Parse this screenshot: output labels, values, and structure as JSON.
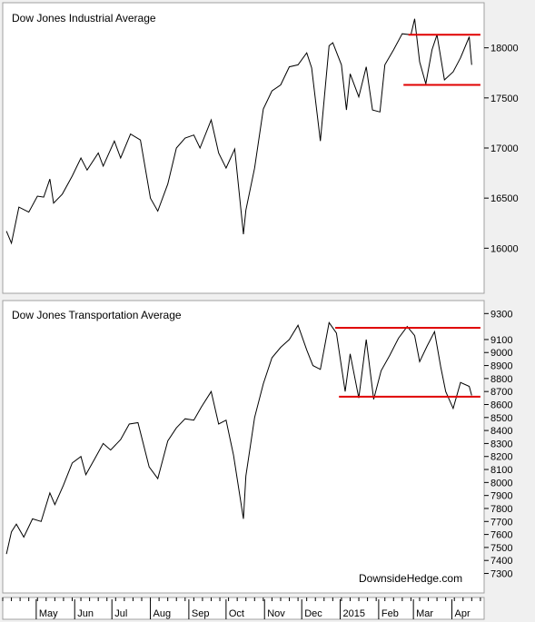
{
  "chart_data": [
    {
      "type": "line",
      "title": "Dow Jones Industrial Average",
      "ylim": [
        15550,
        18450
      ],
      "y_ticks": [
        16000,
        16500,
        17000,
        17500,
        18000
      ],
      "series": [
        {
          "color": "#000000",
          "points": [
            [
              "2014-04-07",
              16170
            ],
            [
              "2014-04-11",
              16050
            ],
            [
              "2014-04-17",
              16410
            ],
            [
              "2014-04-25",
              16360
            ],
            [
              "2014-05-02",
              16520
            ],
            [
              "2014-05-07",
              16510
            ],
            [
              "2014-05-12",
              16690
            ],
            [
              "2014-05-15",
              16450
            ],
            [
              "2014-05-22",
              16540
            ],
            [
              "2014-05-30",
              16720
            ],
            [
              "2014-06-06",
              16900
            ],
            [
              "2014-06-11",
              16780
            ],
            [
              "2014-06-20",
              16950
            ],
            [
              "2014-06-24",
              16820
            ],
            [
              "2014-07-03",
              17070
            ],
            [
              "2014-07-08",
              16900
            ],
            [
              "2014-07-16",
              17140
            ],
            [
              "2014-07-24",
              17080
            ],
            [
              "2014-08-01",
              16500
            ],
            [
              "2014-08-07",
              16370
            ],
            [
              "2014-08-15",
              16640
            ],
            [
              "2014-08-22",
              17000
            ],
            [
              "2014-08-29",
              17100
            ],
            [
              "2014-09-05",
              17130
            ],
            [
              "2014-09-10",
              17000
            ],
            [
              "2014-09-19",
              17280
            ],
            [
              "2014-09-25",
              16950
            ],
            [
              "2014-10-01",
              16800
            ],
            [
              "2014-10-08",
              16990
            ],
            [
              "2014-10-15",
              16140
            ],
            [
              "2014-10-17",
              16380
            ],
            [
              "2014-10-24",
              16800
            ],
            [
              "2014-10-31",
              17390
            ],
            [
              "2014-11-07",
              17570
            ],
            [
              "2014-11-14",
              17630
            ],
            [
              "2014-11-21",
              17810
            ],
            [
              "2014-11-28",
              17830
            ],
            [
              "2014-12-05",
              17950
            ],
            [
              "2014-12-09",
              17800
            ],
            [
              "2014-12-16",
              17070
            ],
            [
              "2014-12-23",
              18020
            ],
            [
              "2014-12-26",
              18050
            ],
            [
              "2015-01-02",
              17830
            ],
            [
              "2015-01-06",
              17380
            ],
            [
              "2015-01-09",
              17740
            ],
            [
              "2015-01-16",
              17510
            ],
            [
              "2015-01-22",
              17810
            ],
            [
              "2015-01-27",
              17380
            ],
            [
              "2015-02-02",
              17360
            ],
            [
              "2015-02-06",
              17830
            ],
            [
              "2015-02-13",
              17980
            ],
            [
              "2015-02-20",
              18140
            ],
            [
              "2015-02-27",
              18130
            ],
            [
              "2015-03-02",
              18290
            ],
            [
              "2015-03-06",
              17860
            ],
            [
              "2015-03-11",
              17640
            ],
            [
              "2015-03-16",
              17980
            ],
            [
              "2015-03-20",
              18130
            ],
            [
              "2015-03-26",
              17680
            ],
            [
              "2015-04-02",
              17760
            ],
            [
              "2015-04-08",
              17900
            ],
            [
              "2015-04-15",
              18110
            ],
            [
              "2015-04-17",
              17830
            ]
          ]
        }
      ],
      "levels": [
        {
          "color": "#e00000",
          "value": 18130,
          "from": "2015-02-25",
          "to": "2015-04-24"
        },
        {
          "color": "#e00000",
          "value": 17630,
          "from": "2015-02-21",
          "to": "2015-04-24"
        }
      ]
    },
    {
      "type": "line",
      "title": "Dow Jones Transportation Average",
      "ylim": [
        7150,
        9400
      ],
      "y_ticks": [
        7300,
        7400,
        7500,
        7600,
        7700,
        7800,
        7900,
        8000,
        8100,
        8200,
        8300,
        8400,
        8500,
        8600,
        8700,
        8800,
        8900,
        9000,
        9100,
        9300
      ],
      "series": [
        {
          "color": "#000000",
          "points": [
            [
              "2014-04-07",
              7450
            ],
            [
              "2014-04-11",
              7620
            ],
            [
              "2014-04-15",
              7680
            ],
            [
              "2014-04-21",
              7580
            ],
            [
              "2014-04-28",
              7720
            ],
            [
              "2014-05-05",
              7700
            ],
            [
              "2014-05-12",
              7920
            ],
            [
              "2014-05-16",
              7830
            ],
            [
              "2014-05-23",
              7980
            ],
            [
              "2014-05-30",
              8150
            ],
            [
              "2014-06-06",
              8200
            ],
            [
              "2014-06-10",
              8060
            ],
            [
              "2014-06-17",
              8180
            ],
            [
              "2014-06-24",
              8300
            ],
            [
              "2014-06-30",
              8250
            ],
            [
              "2014-07-08",
              8330
            ],
            [
              "2014-07-15",
              8450
            ],
            [
              "2014-07-22",
              8460
            ],
            [
              "2014-07-31",
              8120
            ],
            [
              "2014-08-07",
              8030
            ],
            [
              "2014-08-15",
              8320
            ],
            [
              "2014-08-22",
              8420
            ],
            [
              "2014-08-29",
              8490
            ],
            [
              "2014-09-05",
              8480
            ],
            [
              "2014-09-11",
              8580
            ],
            [
              "2014-09-19",
              8700
            ],
            [
              "2014-09-25",
              8450
            ],
            [
              "2014-10-01",
              8480
            ],
            [
              "2014-10-07",
              8210
            ],
            [
              "2014-10-15",
              7720
            ],
            [
              "2014-10-17",
              8050
            ],
            [
              "2014-10-24",
              8500
            ],
            [
              "2014-10-31",
              8760
            ],
            [
              "2014-11-07",
              8960
            ],
            [
              "2014-11-14",
              9040
            ],
            [
              "2014-11-21",
              9100
            ],
            [
              "2014-11-28",
              9210
            ],
            [
              "2014-12-05",
              9020
            ],
            [
              "2014-12-10",
              8900
            ],
            [
              "2014-12-16",
              8870
            ],
            [
              "2014-12-23",
              9230
            ],
            [
              "2014-12-29",
              9150
            ],
            [
              "2015-01-05",
              8700
            ],
            [
              "2015-01-09",
              8990
            ],
            [
              "2015-01-16",
              8650
            ],
            [
              "2015-01-22",
              9100
            ],
            [
              "2015-01-28",
              8640
            ],
            [
              "2015-02-03",
              8860
            ],
            [
              "2015-02-10",
              8980
            ],
            [
              "2015-02-17",
              9110
            ],
            [
              "2015-02-24",
              9200
            ],
            [
              "2015-03-02",
              9130
            ],
            [
              "2015-03-06",
              8930
            ],
            [
              "2015-03-12",
              9050
            ],
            [
              "2015-03-18",
              9160
            ],
            [
              "2015-03-23",
              8890
            ],
            [
              "2015-03-27",
              8700
            ],
            [
              "2015-04-02",
              8570
            ],
            [
              "2015-04-08",
              8770
            ],
            [
              "2015-04-15",
              8740
            ],
            [
              "2015-04-17",
              8670
            ]
          ]
        }
      ],
      "levels": [
        {
          "color": "#e00000",
          "value": 9190,
          "from": "2014-12-28",
          "to": "2015-04-24"
        },
        {
          "color": "#e00000",
          "value": 8660,
          "from": "2014-12-31",
          "to": "2015-04-24"
        }
      ]
    }
  ],
  "watermark": "DownsideHedge.com",
  "x_axis": {
    "months": [
      {
        "label": "May",
        "date": "2014-05-01"
      },
      {
        "label": "Jun",
        "date": "2014-06-01"
      },
      {
        "label": "Jul",
        "date": "2014-07-01"
      },
      {
        "label": "Aug",
        "date": "2014-08-01"
      },
      {
        "label": "Sep",
        "date": "2014-09-01"
      },
      {
        "label": "Oct",
        "date": "2014-10-01"
      },
      {
        "label": "Nov",
        "date": "2014-11-01"
      },
      {
        "label": "Dec",
        "date": "2014-12-01"
      },
      {
        "label": "2015",
        "date": "2015-01-01"
      },
      {
        "label": "Feb",
        "date": "2015-02-01"
      },
      {
        "label": "Mar",
        "date": "2015-03-01"
      },
      {
        "label": "Apr",
        "date": "2015-04-01"
      }
    ]
  }
}
